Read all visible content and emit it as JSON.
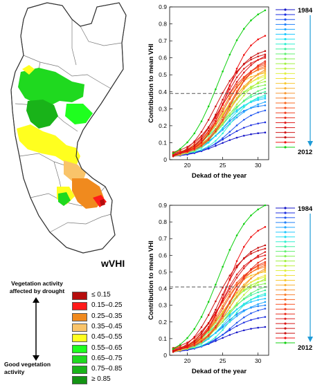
{
  "map": {
    "legend_title": "wVHI",
    "classes": [
      {
        "label": "≤ 0.15",
        "color": "#b50d0d"
      },
      {
        "label": "0.15–0.25",
        "color": "#ff1a1a"
      },
      {
        "label": "0.25–0.35",
        "color": "#f08a1e"
      },
      {
        "label": "0.35–0.45",
        "color": "#f9c46a"
      },
      {
        "label": "0.45–0.55",
        "color": "#ffff1f"
      },
      {
        "label": "0.55–0.65",
        "color": "#1fff1f"
      },
      {
        "label": "0.65–0.75",
        "color": "#1fd91f"
      },
      {
        "label": "0.75–0.85",
        "color": "#19b319"
      },
      {
        "label": "≥ 0.85",
        "color": "#139313"
      }
    ],
    "label_top": "Vegetation activity affected by drought",
    "label_bottom": "Good vegetation activity"
  },
  "chart_data": [
    {
      "type": "line",
      "ylabel": "Contribution to mean VHI",
      "xlabel": "Dekad of the year",
      "xlim": [
        17.5,
        31.5
      ],
      "ylim": [
        0,
        0.9
      ],
      "xticks": [
        20,
        25,
        30
      ],
      "yticks": [
        0,
        0.1,
        0.2,
        0.3,
        0.4,
        0.5,
        0.6,
        0.7,
        0.8,
        0.9
      ],
      "threshold": 0.39,
      "x": [
        18,
        19,
        20,
        21,
        22,
        23,
        24,
        25,
        26,
        27,
        28,
        29,
        30,
        31
      ],
      "legend_start": "1984",
      "legend_end": "2012",
      "series_finals": [
        0.16,
        0.22,
        0.29,
        0.32,
        0.34,
        0.36,
        0.37,
        0.38,
        0.4,
        0.42,
        0.44,
        0.46,
        0.48,
        0.49,
        0.5,
        0.51,
        0.52,
        0.53,
        0.54,
        0.55,
        0.56,
        0.57,
        0.58,
        0.6,
        0.61,
        0.62,
        0.64,
        0.73,
        0.88
      ]
    },
    {
      "type": "line",
      "ylabel": "Contribution to mean VHI",
      "xlabel": "Dekad of the year",
      "xlim": [
        17.5,
        31.5
      ],
      "ylim": [
        0,
        0.9
      ],
      "xticks": [
        20,
        25,
        30
      ],
      "yticks": [
        0,
        0.1,
        0.2,
        0.3,
        0.4,
        0.5,
        0.6,
        0.7,
        0.8,
        0.9
      ],
      "threshold": 0.41,
      "x": [
        18,
        19,
        20,
        21,
        22,
        23,
        24,
        25,
        26,
        27,
        28,
        29,
        30,
        31
      ],
      "legend_start": "1984",
      "legend_end": "2012",
      "series_finals": [
        0.17,
        0.23,
        0.28,
        0.3,
        0.32,
        0.34,
        0.36,
        0.37,
        0.39,
        0.41,
        0.43,
        0.45,
        0.46,
        0.47,
        0.48,
        0.5,
        0.51,
        0.52,
        0.53,
        0.54,
        0.55,
        0.56,
        0.58,
        0.6,
        0.62,
        0.64,
        0.66,
        0.77,
        0.9
      ]
    }
  ],
  "palette": [
    "#1414c8",
    "#1c2fe0",
    "#1f55f0",
    "#2080f8",
    "#20a8ff",
    "#20c8ff",
    "#22e0f0",
    "#30f0d0",
    "#40f0a0",
    "#60f070",
    "#80f050",
    "#a0f040",
    "#c0f040",
    "#e0f040",
    "#f0e040",
    "#f8c830",
    "#f8b030",
    "#f89830",
    "#f88030",
    "#f86820",
    "#f85020",
    "#f04020",
    "#e83020",
    "#e02020",
    "#d81818",
    "#d01414",
    "#c81010",
    "#f01010",
    "#10d010"
  ]
}
